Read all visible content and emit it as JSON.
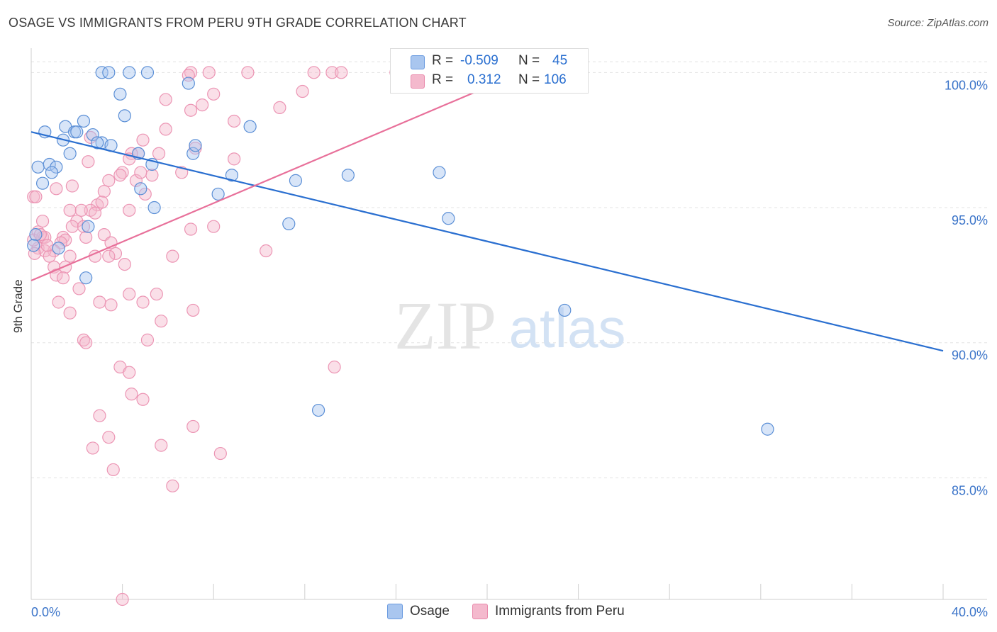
{
  "title": "OSAGE VS IMMIGRANTS FROM PERU 9TH GRADE CORRELATION CHART",
  "source": "Source: ZipAtlas.com",
  "watermark": {
    "zip": "ZIP",
    "atlas": "atlas"
  },
  "colors": {
    "osage": "#2a6fd0",
    "osage_fill": "#a9c6ef",
    "peru": "#e8709a",
    "peru_fill": "#f4b9cd",
    "axis_text": "#3b74c9",
    "grid": "#e3e3e3"
  },
  "legend": {
    "osage": {
      "r_label": "R =",
      "r_value": "-0.509",
      "n_label": "N =",
      "n_value": "45"
    },
    "peru": {
      "r_label": "R =",
      "r_value": "0.312",
      "n_label": "N =",
      "n_value": "106"
    }
  },
  "bottom_legend": {
    "osage": "Osage",
    "peru": "Immigrants from Peru"
  },
  "chart_data": {
    "type": "scatter",
    "ylabel": "9th Grade",
    "xlim": [
      0,
      40
    ],
    "ylim": [
      80.5,
      100.9
    ],
    "x_tick_labels": {
      "min": "0.0%",
      "max": "40.0%"
    },
    "x_minor_ticks": [
      0,
      4,
      8,
      12,
      16,
      20,
      24,
      28,
      32,
      36,
      40
    ],
    "y_ticks": [
      {
        "value": 85,
        "label": "85.0%"
      },
      {
        "value": 90,
        "label": "90.0%"
      },
      {
        "value": 95,
        "label": "95.0%"
      },
      {
        "value": 100,
        "label": "100.0%"
      }
    ],
    "series": [
      {
        "name": "Osage",
        "trend": {
          "x": [
            0,
            40
          ],
          "y": [
            97.8,
            89.7
          ]
        },
        "points": [
          [
            3.1,
            100
          ],
          [
            3.4,
            100
          ],
          [
            4.3,
            100
          ],
          [
            5.1,
            100
          ],
          [
            6.9,
            99.6
          ],
          [
            3.9,
            99.2
          ],
          [
            4.1,
            98.4
          ],
          [
            2.3,
            98.2
          ],
          [
            1.5,
            98.0
          ],
          [
            1.9,
            97.8
          ],
          [
            0.6,
            97.8
          ],
          [
            2.0,
            97.8
          ],
          [
            2.7,
            97.7
          ],
          [
            3.1,
            97.4
          ],
          [
            2.9,
            97.4
          ],
          [
            3.5,
            97.3
          ],
          [
            1.4,
            97.5
          ],
          [
            7.1,
            97.0
          ],
          [
            7.2,
            97.3
          ],
          [
            1.7,
            97.0
          ],
          [
            4.7,
            97.0
          ],
          [
            5.3,
            96.6
          ],
          [
            0.3,
            96.5
          ],
          [
            0.8,
            96.6
          ],
          [
            1.1,
            96.5
          ],
          [
            0.9,
            96.3
          ],
          [
            8.8,
            96.2
          ],
          [
            0.5,
            95.9
          ],
          [
            11.6,
            96.0
          ],
          [
            13.9,
            96.2
          ],
          [
            17.9,
            96.3
          ],
          [
            4.8,
            95.7
          ],
          [
            8.2,
            95.5
          ],
          [
            5.4,
            95.0
          ],
          [
            18.3,
            94.6
          ],
          [
            11.3,
            94.4
          ],
          [
            2.5,
            94.3
          ],
          [
            0.2,
            94.0
          ],
          [
            9.6,
            98.0
          ],
          [
            2.4,
            92.4
          ],
          [
            12.6,
            87.5
          ],
          [
            23.4,
            91.2
          ],
          [
            32.3,
            86.8
          ],
          [
            0.1,
            93.6
          ],
          [
            1.2,
            93.5
          ]
        ]
      },
      {
        "name": "Immigrants from Peru",
        "trend": {
          "x": [
            0,
            21.5
          ],
          "y": [
            92.3,
            100.0
          ]
        },
        "points": [
          [
            7.0,
            100
          ],
          [
            7.8,
            100
          ],
          [
            9.5,
            100
          ],
          [
            12.4,
            100
          ],
          [
            13.2,
            100
          ],
          [
            13.6,
            100
          ],
          [
            6.9,
            99.9
          ],
          [
            11.9,
            99.3
          ],
          [
            8.0,
            99.2
          ],
          [
            5.9,
            99.0
          ],
          [
            7.5,
            98.8
          ],
          [
            10.9,
            98.7
          ],
          [
            7.0,
            98.6
          ],
          [
            8.9,
            98.2
          ],
          [
            5.9,
            97.9
          ],
          [
            2.6,
            97.6
          ],
          [
            4.9,
            97.5
          ],
          [
            7.2,
            97.2
          ],
          [
            4.7,
            97.0
          ],
          [
            5.6,
            97.0
          ],
          [
            4.4,
            97.0
          ],
          [
            8.9,
            96.8
          ],
          [
            4.3,
            96.8
          ],
          [
            2.5,
            96.7
          ],
          [
            6.6,
            96.3
          ],
          [
            4.0,
            96.3
          ],
          [
            5.3,
            96.2
          ],
          [
            3.4,
            96.0
          ],
          [
            4.6,
            96.0
          ],
          [
            1.8,
            95.8
          ],
          [
            1.1,
            95.7
          ],
          [
            3.2,
            95.6
          ],
          [
            5.0,
            95.5
          ],
          [
            0.1,
            95.4
          ],
          [
            2.9,
            95.1
          ],
          [
            3.1,
            95.2
          ],
          [
            2.6,
            94.9
          ],
          [
            4.3,
            94.9
          ],
          [
            1.7,
            94.9
          ],
          [
            2.8,
            94.8
          ],
          [
            0.5,
            94.5
          ],
          [
            2.0,
            94.5
          ],
          [
            1.8,
            94.3
          ],
          [
            7.0,
            94.2
          ],
          [
            8.0,
            94.3
          ],
          [
            2.3,
            94.3
          ],
          [
            0.3,
            94.1
          ],
          [
            0.5,
            93.9
          ],
          [
            1.4,
            93.9
          ],
          [
            3.2,
            94.0
          ],
          [
            0.6,
            93.9
          ],
          [
            1.5,
            93.8
          ],
          [
            1.3,
            93.7
          ],
          [
            2.4,
            93.9
          ],
          [
            3.5,
            93.7
          ],
          [
            1.0,
            93.4
          ],
          [
            0.3,
            93.5
          ],
          [
            0.6,
            93.4
          ],
          [
            1.7,
            93.2
          ],
          [
            0.8,
            93.2
          ],
          [
            3.7,
            93.3
          ],
          [
            2.8,
            93.2
          ],
          [
            3.4,
            93.2
          ],
          [
            6.2,
            93.2
          ],
          [
            10.3,
            93.4
          ],
          [
            1.0,
            92.8
          ],
          [
            1.5,
            92.8
          ],
          [
            4.1,
            92.9
          ],
          [
            1.1,
            92.5
          ],
          [
            1.4,
            92.4
          ],
          [
            2.1,
            92.0
          ],
          [
            5.5,
            91.8
          ],
          [
            4.3,
            91.8
          ],
          [
            3.0,
            91.5
          ],
          [
            3.5,
            91.4
          ],
          [
            1.2,
            91.5
          ],
          [
            4.9,
            91.5
          ],
          [
            7.1,
            91.2
          ],
          [
            1.7,
            91.1
          ],
          [
            5.7,
            90.8
          ],
          [
            2.3,
            90.1
          ],
          [
            2.4,
            90.0
          ],
          [
            5.1,
            90.1
          ],
          [
            3.9,
            89.1
          ],
          [
            4.3,
            88.9
          ],
          [
            13.3,
            89.1
          ],
          [
            4.4,
            88.1
          ],
          [
            4.9,
            87.9
          ],
          [
            3.0,
            87.3
          ],
          [
            7.1,
            86.9
          ],
          [
            3.4,
            86.5
          ],
          [
            2.7,
            86.1
          ],
          [
            5.7,
            86.2
          ],
          [
            8.3,
            85.9
          ],
          [
            3.6,
            85.3
          ],
          [
            6.2,
            84.7
          ],
          [
            4.0,
            80.5
          ],
          [
            0.1,
            93.8
          ],
          [
            0.2,
            95.4
          ],
          [
            0.15,
            93.3
          ],
          [
            0.4,
            94.0
          ],
          [
            16.0,
            100
          ],
          [
            0.7,
            93.6
          ],
          [
            2.2,
            94.9
          ],
          [
            3.9,
            96.2
          ],
          [
            4.8,
            96.3
          ]
        ]
      }
    ]
  }
}
